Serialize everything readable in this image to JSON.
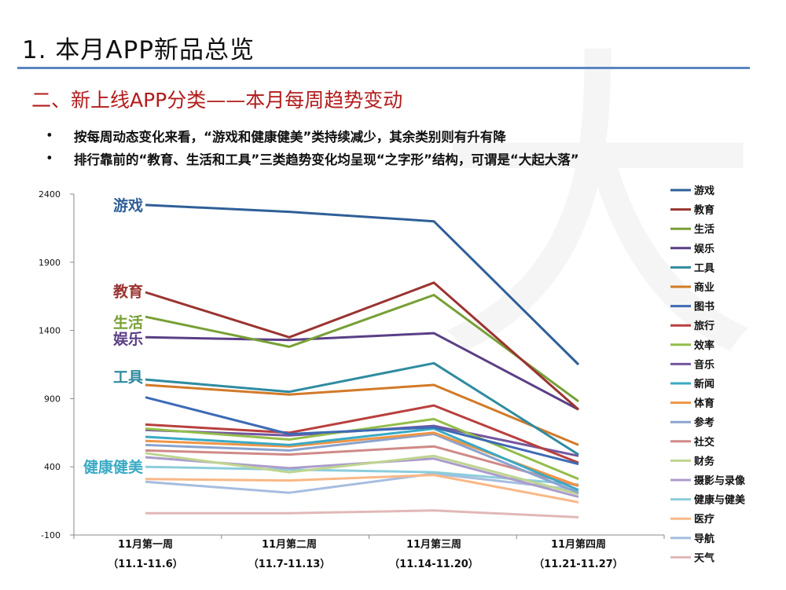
{
  "page": {
    "title": "1. 本月APP新品总览",
    "section_title": "二、新上线APP分类——本月每周趋势变动",
    "bullets": [
      "按每周动态变化来看，“游戏和健康健美”类持续减少，其余类别则有升有降",
      "排行靠前的“教育、生活和工具”三类趋势变化均呈现“之字形”结构，可谓是“大起大落”"
    ]
  },
  "chart_data": {
    "type": "line",
    "title": "",
    "xlabel": "",
    "ylabel": "",
    "ylim": [
      -100,
      2400
    ],
    "yticks": [
      -100,
      400,
      900,
      1400,
      1900,
      2400
    ],
    "categories": [
      [
        "11月第一周",
        "（11.1-11.6）"
      ],
      [
        "11月第二周",
        "（11.7-11.13）"
      ],
      [
        "11月第三周",
        "（11.14-11.20）"
      ],
      [
        "11月第四周",
        "（11.21-11.27）"
      ]
    ],
    "grid": false,
    "legend": "right",
    "series": [
      {
        "name": "游戏",
        "color": "#2f5f98",
        "values": [
          2320,
          2270,
          2200,
          1150
        ]
      },
      {
        "name": "教育",
        "color": "#9a3431",
        "values": [
          1680,
          1350,
          1750,
          820
        ]
      },
      {
        "name": "生活",
        "color": "#77a036",
        "values": [
          1500,
          1280,
          1660,
          880
        ]
      },
      {
        "name": "娱乐",
        "color": "#5a3f86",
        "values": [
          1350,
          1330,
          1380,
          820
        ]
      },
      {
        "name": "工具",
        "color": "#2f8ba0",
        "values": [
          1040,
          950,
          1160,
          490
        ]
      },
      {
        "name": "商业",
        "color": "#d27a28",
        "values": [
          1000,
          930,
          1000,
          560
        ]
      },
      {
        "name": "图书",
        "color": "#3e6ab5",
        "values": [
          910,
          640,
          690,
          420
        ]
      },
      {
        "name": "旅行",
        "color": "#b8403e",
        "values": [
          710,
          650,
          850,
          430
        ]
      },
      {
        "name": "效率",
        "color": "#93bd4a",
        "values": [
          680,
          600,
          750,
          310
        ]
      },
      {
        "name": "音乐",
        "color": "#73579f",
        "values": [
          670,
          630,
          700,
          480
        ]
      },
      {
        "name": "新闻",
        "color": "#3aaac4",
        "values": [
          620,
          560,
          680,
          230
        ]
      },
      {
        "name": "体育",
        "color": "#ef9546",
        "values": [
          590,
          550,
          650,
          260
        ]
      },
      {
        "name": "参考",
        "color": "#8aa3cf",
        "values": [
          560,
          520,
          640,
          210
        ]
      },
      {
        "name": "社交",
        "color": "#cf8a88",
        "values": [
          520,
          490,
          550,
          260
        ]
      },
      {
        "name": "财务",
        "color": "#bed58f",
        "values": [
          500,
          360,
          480,
          200
        ]
      },
      {
        "name": "摄影与录像",
        "color": "#ab9ccb",
        "values": [
          470,
          390,
          460,
          180
        ]
      },
      {
        "name": "健康与健美",
        "color": "#8ccddc",
        "values": [
          400,
          380,
          360,
          270
        ]
      },
      {
        "name": "医疗",
        "color": "#f8b887",
        "values": [
          310,
          300,
          340,
          140
        ]
      },
      {
        "name": "导航",
        "color": "#a6bde0",
        "values": [
          290,
          210,
          350,
          230
        ]
      },
      {
        "name": "天气",
        "color": "#e1b8b7",
        "values": [
          60,
          60,
          80,
          30
        ]
      }
    ],
    "annotations": [
      {
        "text": "游戏",
        "value": 2320,
        "color": "#2f5f98"
      },
      {
        "text": "教育",
        "value": 1690,
        "color": "#9a3431"
      },
      {
        "text": "生活",
        "value": 1460,
        "color": "#77a036"
      },
      {
        "text": "娱乐",
        "value": 1340,
        "color": "#5a3f86"
      },
      {
        "text": "工具",
        "value": 1060,
        "color": "#2f8ba0"
      },
      {
        "text": "健康健美",
        "value": 400,
        "color": "#3aaac4"
      }
    ]
  }
}
